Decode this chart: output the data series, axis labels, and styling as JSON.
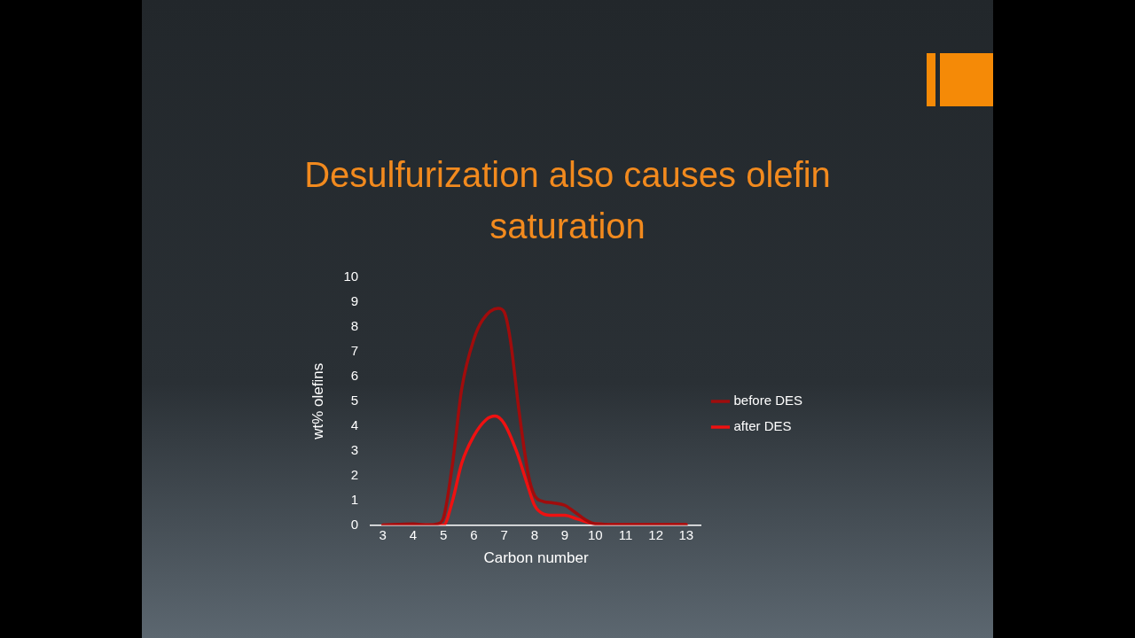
{
  "chart_data": {
    "type": "line",
    "title": "Desulfurization also causes olefin saturation",
    "xlabel": "Carbon number",
    "ylabel": "wt% olefins",
    "xlim": [
      2.6,
      13.5
    ],
    "xticks": [
      3,
      4,
      5,
      6,
      7,
      8,
      9,
      10,
      11,
      12,
      13
    ],
    "ylim": [
      0,
      10
    ],
    "yticks": [
      0,
      1,
      2,
      3,
      4,
      5,
      6,
      7,
      8,
      9,
      10
    ],
    "grid": false,
    "legend": "right",
    "marker": "none",
    "line_style": "solid",
    "series": [
      {
        "name": "before DES",
        "color": "#a00c0c",
        "x": [
          3,
          4,
          4.5,
          4.8,
          5,
          5.3,
          5.6,
          6,
          6.3,
          6.8,
          7,
          7.2,
          7.5,
          7.8,
          8,
          8.3,
          8.6,
          9,
          9.3,
          9.7,
          10,
          11,
          12,
          13
        ],
        "values": [
          0,
          0.05,
          0,
          0.05,
          0.3,
          2.5,
          5.5,
          7.5,
          8.3,
          8.75,
          8.6,
          7.5,
          4.5,
          2,
          1.2,
          0.95,
          0.9,
          0.8,
          0.55,
          0.2,
          0.05,
          0.02,
          0.02,
          0.02
        ]
      },
      {
        "name": "after DES",
        "color": "#ee1111",
        "x": [
          3,
          4,
          5,
          5.3,
          5.6,
          6,
          6.4,
          6.7,
          7,
          7.4,
          7.8,
          8,
          8.3,
          8.6,
          9,
          9.4,
          10,
          11,
          12,
          13
        ],
        "values": [
          0,
          0.02,
          0,
          1,
          2.5,
          3.6,
          4.25,
          4.4,
          4.1,
          3,
          1.5,
          0.8,
          0.45,
          0.4,
          0.4,
          0.25,
          0.05,
          0.02,
          0.02,
          0.02
        ]
      }
    ]
  }
}
